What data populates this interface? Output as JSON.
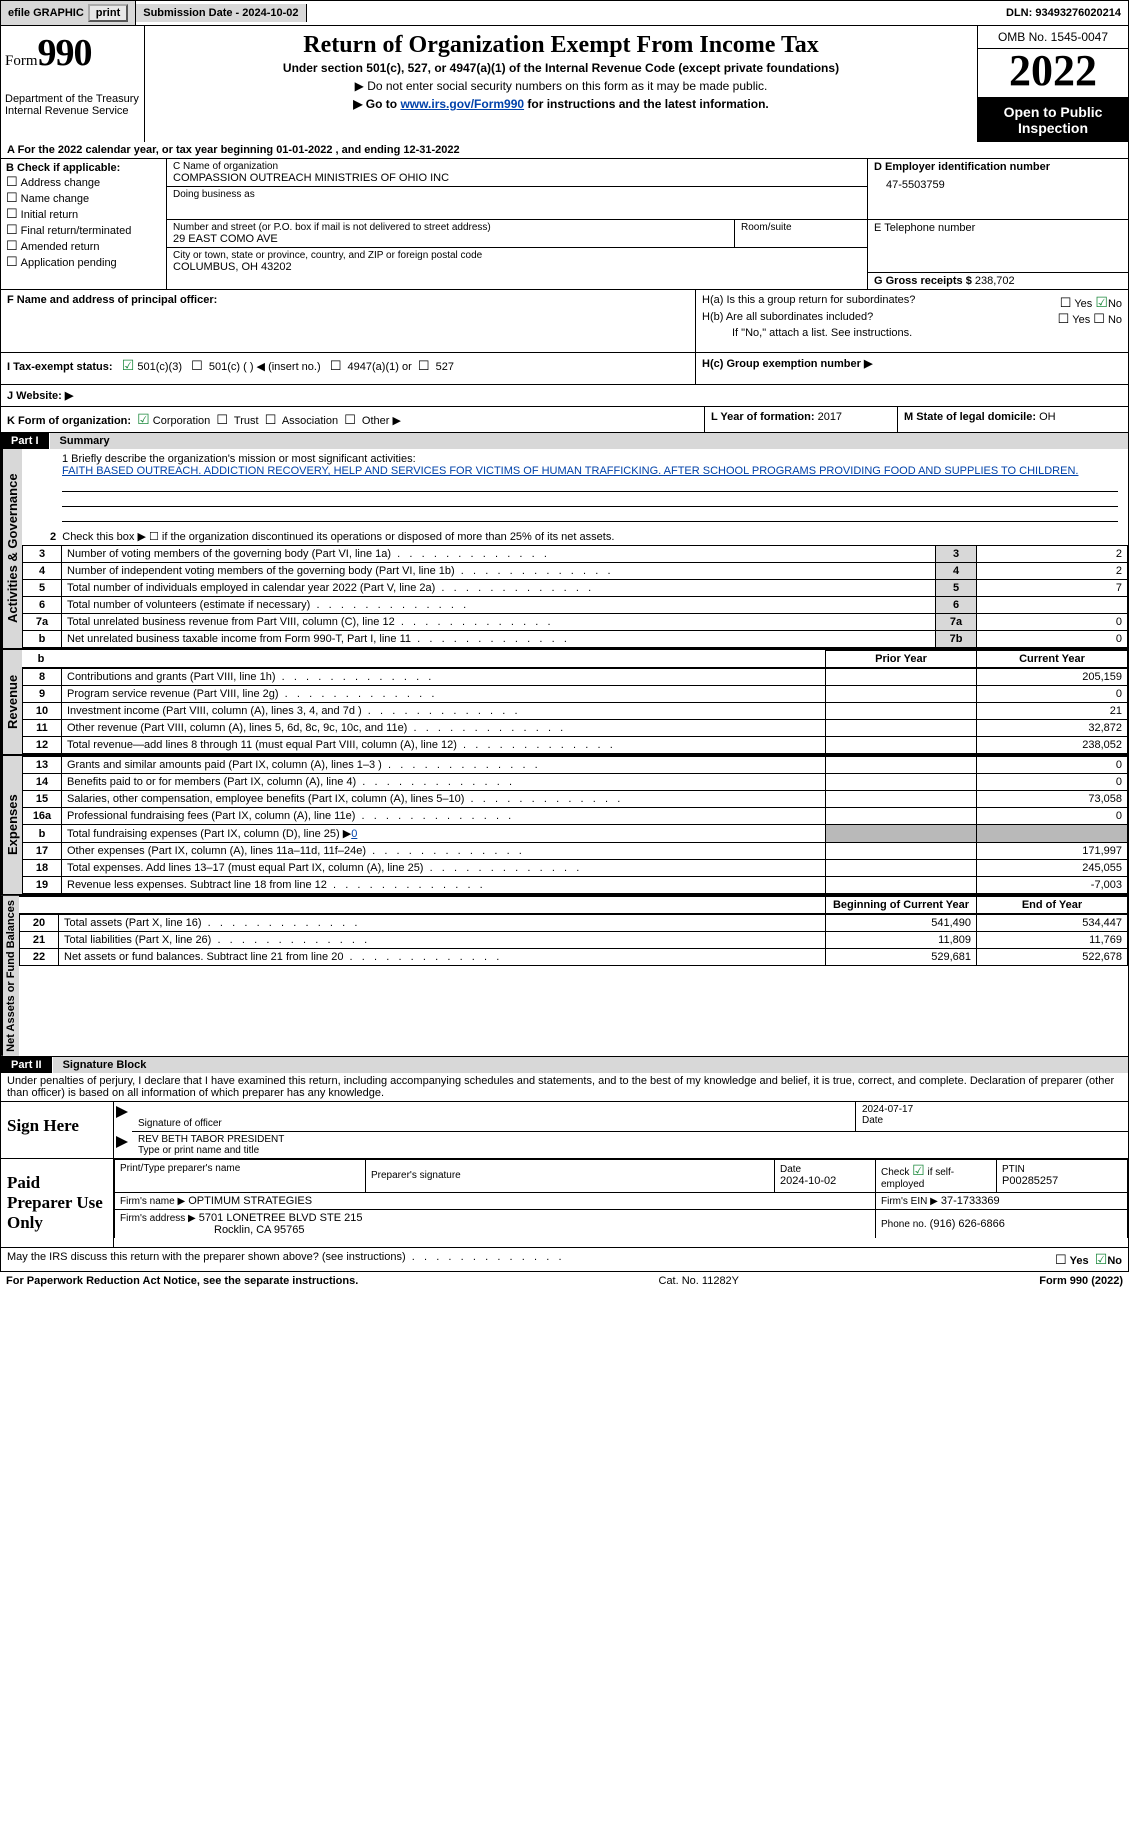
{
  "top_bar": {
    "efile": "efile GRAPHIC",
    "print": "print",
    "submission_label": "Submission Date - 2024-10-02",
    "dln_label": "DLN: 93493276020214"
  },
  "header": {
    "form_word": "Form",
    "form_num": "990",
    "dept": "Department of the Treasury",
    "irs": "Internal Revenue Service",
    "title": "Return of Organization Exempt From Income Tax",
    "subtitle": "Under section 501(c), 527, or 4947(a)(1) of the Internal Revenue Code (except private foundations)",
    "note1": "▶ Do not enter social security numbers on this form as it may be made public.",
    "note2_pre": "▶ Go to ",
    "note2_link": "www.irs.gov/Form990",
    "note2_post": " for instructions and the latest information.",
    "omb": "OMB No. 1545-0047",
    "year": "2022",
    "open_pub": "Open to Public Inspection"
  },
  "row_a": "A For the 2022 calendar year, or tax year beginning 01-01-2022    , and ending 12-31-2022",
  "section_b": {
    "head": "B Check if applicable:",
    "items": [
      "Address change",
      "Name change",
      "Initial return",
      "Final return/terminated",
      "Amended return",
      "Application pending"
    ]
  },
  "section_c": {
    "name_label": "C Name of organization",
    "name": "COMPASSION OUTREACH MINISTRIES OF OHIO INC",
    "dba_label": "Doing business as",
    "addr_label": "Number and street (or P.O. box if mail is not delivered to street address)",
    "room_label": "Room/suite",
    "addr": "29 EAST COMO AVE",
    "city_label": "City or town, state or province, country, and ZIP or foreign postal code",
    "city": "COLUMBUS, OH  43202"
  },
  "section_d": {
    "ein_label": "D Employer identification number",
    "ein": "47-5503759",
    "tel_label": "E Telephone number",
    "gross_label": "G Gross receipts $",
    "gross": "238,702"
  },
  "section_fh": {
    "f_label": "F  Name and address of principal officer:",
    "ha": "H(a)  Is this a group return for subordinates?",
    "hb": "H(b)  Are all subordinates included?",
    "hb_note": "If \"No,\" attach a list. See instructions.",
    "hc": "H(c)  Group exemption number ▶",
    "yes": "Yes",
    "no": "No"
  },
  "section_i": {
    "label": "I   Tax-exempt status:",
    "c3": "501(c)(3)",
    "c": "501(c) (  ) ◀ (insert no.)",
    "a4947": "4947(a)(1) or",
    "s527": "527"
  },
  "section_j": {
    "label": "J   Website: ▶"
  },
  "section_k": {
    "label": "K Form of organization:",
    "corp": "Corporation",
    "trust": "Trust",
    "assoc": "Association",
    "other": "Other ▶",
    "l_label": "L Year of formation:",
    "l_val": "2017",
    "m_label": "M State of legal domicile:",
    "m_val": "OH"
  },
  "part1": {
    "num": "Part I",
    "title": "Summary",
    "mission_label": "1  Briefly describe the organization's mission or most significant activities:",
    "mission": "FAITH BASED OUTREACH. ADDICTION RECOVERY, HELP AND SERVICES FOR VICTIMS OF HUMAN TRAFFICKING. AFTER SCHOOL PROGRAMS PROVIDING FOOD AND SUPPLIES TO CHILDREN.",
    "line2": "Check this box ▶ ☐  if the organization discontinued its operations or disposed of more than 25% of its net assets.",
    "sidelabels": {
      "a": "Activities & Governance",
      "b": "Revenue",
      "c": "Expenses",
      "d": "Net Assets or Fund Balances"
    },
    "col_prior": "Prior Year",
    "col_current": "Current Year",
    "col_begin": "Beginning of Current Year",
    "col_end": "End of Year",
    "rows_ag": [
      {
        "n": "3",
        "t": "Number of voting members of the governing body (Part VI, line 1a)",
        "l": "3",
        "v": "2"
      },
      {
        "n": "4",
        "t": "Number of independent voting members of the governing body (Part VI, line 1b)",
        "l": "4",
        "v": "2"
      },
      {
        "n": "5",
        "t": "Total number of individuals employed in calendar year 2022 (Part V, line 2a)",
        "l": "5",
        "v": "7"
      },
      {
        "n": "6",
        "t": "Total number of volunteers (estimate if necessary)",
        "l": "6",
        "v": ""
      },
      {
        "n": "7a",
        "t": "Total unrelated business revenue from Part VIII, column (C), line 12",
        "l": "7a",
        "v": "0"
      },
      {
        "n": "b",
        "t": "Net unrelated business taxable income from Form 990-T, Part I, line 11",
        "l": "7b",
        "v": "0"
      }
    ],
    "rows_rev": [
      {
        "n": "8",
        "t": "Contributions and grants (Part VIII, line 1h)",
        "p": "",
        "c": "205,159"
      },
      {
        "n": "9",
        "t": "Program service revenue (Part VIII, line 2g)",
        "p": "",
        "c": "0"
      },
      {
        "n": "10",
        "t": "Investment income (Part VIII, column (A), lines 3, 4, and 7d )",
        "p": "",
        "c": "21"
      },
      {
        "n": "11",
        "t": "Other revenue (Part VIII, column (A), lines 5, 6d, 8c, 9c, 10c, and 11e)",
        "p": "",
        "c": "32,872"
      },
      {
        "n": "12",
        "t": "Total revenue—add lines 8 through 11 (must equal Part VIII, column (A), line 12)",
        "p": "",
        "c": "238,052"
      }
    ],
    "rows_exp": [
      {
        "n": "13",
        "t": "Grants and similar amounts paid (Part IX, column (A), lines 1–3 )",
        "p": "",
        "c": "0"
      },
      {
        "n": "14",
        "t": "Benefits paid to or for members (Part IX, column (A), line 4)",
        "p": "",
        "c": "0"
      },
      {
        "n": "15",
        "t": "Salaries, other compensation, employee benefits (Part IX, column (A), lines 5–10)",
        "p": "",
        "c": "73,058"
      },
      {
        "n": "16a",
        "t": "Professional fundraising fees (Part IX, column (A), line 11e)",
        "p": "",
        "c": "0"
      },
      {
        "n": "b",
        "t": "Total fundraising expenses (Part IX, column (D), line 25) ▶",
        "p": "SHADE",
        "c": "SHADE",
        "extra": "0"
      },
      {
        "n": "17",
        "t": "Other expenses (Part IX, column (A), lines 11a–11d, 11f–24e)",
        "p": "",
        "c": "171,997"
      },
      {
        "n": "18",
        "t": "Total expenses. Add lines 13–17 (must equal Part IX, column (A), line 25)",
        "p": "",
        "c": "245,055"
      },
      {
        "n": "19",
        "t": "Revenue less expenses. Subtract line 18 from line 12",
        "p": "",
        "c": "-7,003"
      }
    ],
    "rows_na": [
      {
        "n": "20",
        "t": "Total assets (Part X, line 16)",
        "p": "541,490",
        "c": "534,447"
      },
      {
        "n": "21",
        "t": "Total liabilities (Part X, line 26)",
        "p": "11,809",
        "c": "11,769"
      },
      {
        "n": "22",
        "t": "Net assets or fund balances. Subtract line 21 from line 20",
        "p": "529,681",
        "c": "522,678"
      }
    ]
  },
  "part2": {
    "num": "Part II",
    "title": "Signature Block",
    "declaration": "Under penalties of perjury, I declare that I have examined this return, including accompanying schedules and statements, and to the best of my knowledge and belief, it is true, correct, and complete. Declaration of preparer (other than officer) is based on all information of which preparer has any knowledge.",
    "sign_here": "Sign Here",
    "sig_officer": "Signature of officer",
    "date": "Date",
    "sig_date": "2024-07-17",
    "name_title": "REV BETH TABOR  PRESIDENT",
    "name_title_label": "Type or print name and title",
    "paid": "Paid Preparer Use Only",
    "prep_name_label": "Print/Type preparer's name",
    "prep_sig_label": "Preparer's signature",
    "prep_date_label": "Date",
    "prep_date": "2024-10-02",
    "check_label": "Check ☑ if self-employed",
    "ptin_label": "PTIN",
    "ptin": "P00285257",
    "firm_name_label": "Firm's name    ▶",
    "firm_name": "OPTIMUM STRATEGIES",
    "firm_ein_label": "Firm's EIN ▶",
    "firm_ein": "37-1733369",
    "firm_addr_label": "Firm's address ▶",
    "firm_addr1": "5701 LONETREE BLVD STE 215",
    "firm_addr2": "Rocklin, CA  95765",
    "phone_label": "Phone no.",
    "phone": "(916) 626-6866",
    "may_irs": "May the IRS discuss this return with the preparer shown above? (see instructions)"
  },
  "footer": {
    "left": "For Paperwork Reduction Act Notice, see the separate instructions.",
    "mid": "Cat. No. 11282Y",
    "right": "Form 990 (2022)"
  },
  "colors": {
    "shade": "#b9b9b9",
    "grayhdr": "#d8d8d8",
    "link": "#0042aa"
  }
}
